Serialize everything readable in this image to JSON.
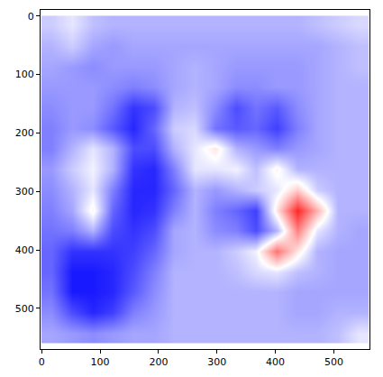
{
  "chart_data": {
    "type": "heatmap",
    "x": [
      17,
      52,
      87,
      122,
      157,
      192,
      227,
      262,
      297,
      332,
      367,
      402,
      437,
      472,
      507,
      542
    ],
    "y": [
      17,
      52,
      87,
      122,
      157,
      192,
      227,
      262,
      297,
      332,
      367,
      402,
      437,
      472,
      507,
      542
    ],
    "z": [
      [
        -0.2,
        -0.1,
        -0.25,
        -0.3,
        -0.3,
        -0.3,
        -0.3,
        -0.3,
        -0.3,
        -0.3,
        -0.3,
        -0.3,
        -0.3,
        -0.25,
        -0.2,
        -0.15
      ],
      [
        -0.3,
        -0.2,
        -0.35,
        -0.4,
        -0.35,
        -0.35,
        -0.35,
        -0.35,
        -0.35,
        -0.35,
        -0.35,
        -0.35,
        -0.35,
        -0.35,
        -0.3,
        -0.25
      ],
      [
        -0.35,
        -0.4,
        -0.45,
        -0.4,
        -0.4,
        -0.4,
        -0.35,
        -0.3,
        -0.35,
        -0.4,
        -0.4,
        -0.4,
        -0.4,
        -0.35,
        -0.3,
        -0.25
      ],
      [
        -0.4,
        -0.4,
        -0.4,
        -0.45,
        -0.5,
        -0.45,
        -0.35,
        -0.3,
        -0.35,
        -0.45,
        -0.45,
        -0.4,
        -0.4,
        -0.35,
        -0.3,
        -0.3
      ],
      [
        -0.45,
        -0.4,
        -0.4,
        -0.55,
        -0.8,
        -0.7,
        -0.3,
        -0.25,
        -0.45,
        -0.7,
        -0.55,
        -0.65,
        -0.45,
        -0.35,
        -0.3,
        -0.3
      ],
      [
        -0.5,
        -0.4,
        -0.45,
        -0.65,
        -0.85,
        -0.6,
        -0.2,
        -0.15,
        -0.55,
        -0.65,
        -0.6,
        -0.75,
        -0.5,
        -0.35,
        -0.3,
        -0.3
      ],
      [
        -0.5,
        -0.3,
        -0.1,
        -0.3,
        -0.7,
        -0.7,
        -0.3,
        -0.1,
        0.1,
        -0.3,
        -0.4,
        -0.5,
        -0.4,
        -0.35,
        -0.3,
        -0.3
      ],
      [
        -0.4,
        -0.2,
        -0.05,
        -0.3,
        -0.8,
        -0.85,
        -0.5,
        -0.1,
        -0.1,
        -0.05,
        -0.25,
        0.05,
        -0.3,
        -0.3,
        -0.3,
        -0.3
      ],
      [
        -0.45,
        -0.3,
        -0.1,
        -0.5,
        -0.85,
        -0.85,
        -0.6,
        -0.3,
        -0.4,
        -0.3,
        -0.2,
        -0.1,
        0.2,
        -0.2,
        -0.3,
        -0.3
      ],
      [
        -0.5,
        -0.35,
        0.05,
        -0.6,
        -0.85,
        -0.8,
        -0.5,
        -0.3,
        -0.5,
        -0.6,
        -0.75,
        0.1,
        0.85,
        0.3,
        -0.3,
        -0.3
      ],
      [
        -0.55,
        -0.5,
        -0.3,
        -0.7,
        -0.8,
        -0.7,
        -0.35,
        -0.3,
        -0.45,
        -0.5,
        -0.7,
        -0.3,
        0.5,
        -0.1,
        -0.3,
        -0.35
      ],
      [
        -0.6,
        -0.8,
        -0.8,
        -0.8,
        -0.75,
        -0.6,
        -0.35,
        -0.3,
        -0.3,
        -0.2,
        -0.05,
        0.55,
        0.1,
        -0.3,
        -0.35,
        -0.35
      ],
      [
        -0.6,
        -0.9,
        -0.9,
        -0.85,
        -0.7,
        -0.5,
        -0.3,
        -0.3,
        -0.3,
        -0.25,
        -0.15,
        -0.1,
        -0.25,
        -0.3,
        -0.35,
        -0.35
      ],
      [
        -0.55,
        -0.9,
        -0.9,
        -0.85,
        -0.65,
        -0.45,
        -0.3,
        -0.3,
        -0.3,
        -0.3,
        -0.3,
        -0.3,
        -0.35,
        -0.35,
        -0.35,
        -0.35
      ],
      [
        -0.45,
        -0.7,
        -0.85,
        -0.75,
        -0.5,
        -0.4,
        -0.3,
        -0.3,
        -0.3,
        -0.3,
        -0.3,
        -0.3,
        -0.35,
        -0.35,
        -0.3,
        -0.3
      ],
      [
        -0.35,
        -0.4,
        -0.45,
        -0.4,
        -0.35,
        -0.35,
        -0.3,
        -0.3,
        -0.3,
        -0.3,
        -0.3,
        -0.3,
        -0.3,
        -0.3,
        -0.25,
        -0.1
      ]
    ],
    "zlim": [
      -1,
      1
    ],
    "xlim": [
      -0.5,
      559.5
    ],
    "ylim": [
      559.5,
      -0.5
    ],
    "xticks": [
      0,
      100,
      200,
      300,
      400,
      500
    ],
    "yticks": [
      0,
      100,
      200,
      300,
      400,
      500
    ]
  }
}
